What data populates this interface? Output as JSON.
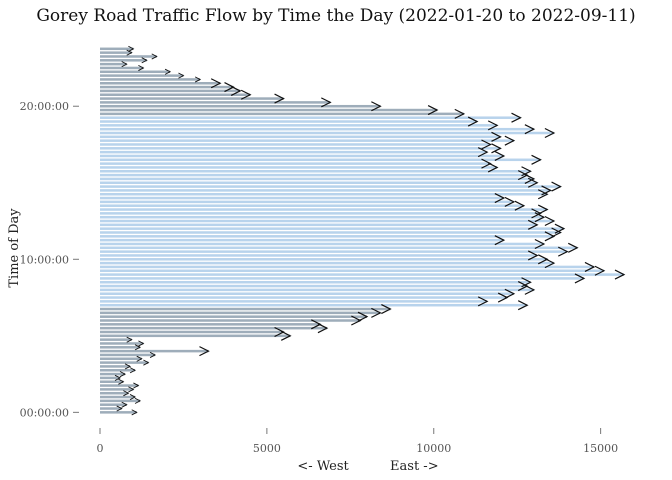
{
  "chart_data": {
    "type": "bar",
    "orientation": "horizontal",
    "title": "Gorey Road Traffic Flow by Time the Day (2022-01-20 to 2022-09-11)",
    "xlabel": "<- West          East ->",
    "ylabel": "Time of Day",
    "xlim": [
      0,
      16000
    ],
    "ylim_hours": [
      -0.5,
      24
    ],
    "x_ticks": [
      0,
      5000,
      10000,
      15000
    ],
    "x_tick_labels": [
      "0",
      "5000",
      "10000",
      "15000"
    ],
    "y_ticks_hours": [
      0,
      10,
      20
    ],
    "y_tick_labels": [
      "00:00:00",
      "10:00:00",
      "20:00:00"
    ],
    "bar_step_hours": 0.25,
    "start_hour": 0,
    "values": [
      1100,
      650,
      800,
      1200,
      1050,
      850,
      1000,
      1150,
      700,
      600,
      750,
      1050,
      900,
      1450,
      1250,
      1650,
      3250,
      1200,
      1300,
      950,
      5700,
      5500,
      6800,
      6600,
      7800,
      8000,
      8400,
      8700,
      12800,
      11600,
      12200,
      12400,
      13000,
      12800,
      12900,
      14500,
      15700,
      15100,
      14800,
      13600,
      13400,
      13100,
      14000,
      14300,
      13300,
      12100,
      13600,
      13800,
      13900,
      13100,
      13600,
      13300,
      13200,
      13400,
      12700,
      12400,
      12100,
      13400,
      13500,
      13800,
      13100,
      13000,
      12800,
      12900,
      11900,
      11700,
      13200,
      12100,
      11600,
      12000,
      11700,
      12400,
      12000,
      13600,
      13000,
      11900,
      11300,
      12600,
      10900,
      10100,
      8400,
      6900,
      5500,
      4500,
      4200,
      4000,
      3600,
      3000,
      2500,
      2100,
      1300,
      800,
      1400,
      1700,
      950,
      1000
    ],
    "colors": {
      "night_bar": "#9eadba",
      "day_bar": "#b8d3ec",
      "arrow": "#111111",
      "tick_text": "#555555"
    }
  }
}
